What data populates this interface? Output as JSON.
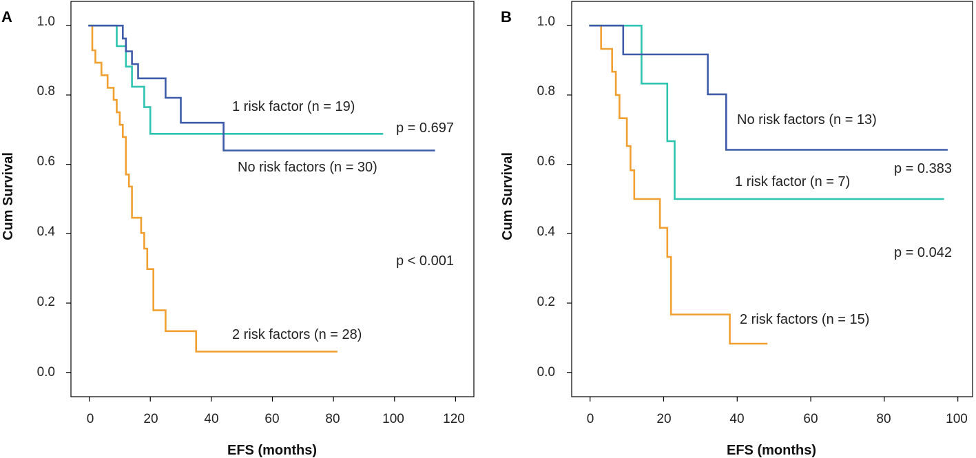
{
  "chart_data": [
    {
      "panel": "A",
      "type": "line",
      "title": "",
      "xlabel": "EFS (months)",
      "ylabel": "Cum Survival",
      "xlim": [
        -6,
        126
      ],
      "ylim": [
        -0.07,
        1.07
      ],
      "xticks": [
        0,
        20,
        40,
        60,
        80,
        100,
        120
      ],
      "yticks": [
        "0.0",
        "0.2",
        "0.4",
        "0.6",
        "0.8",
        "1.0"
      ],
      "series": [
        {
          "name": "2 risk factors (n = 28)",
          "color": "#F0A030",
          "step": true,
          "x": [
            0,
            1,
            2,
            4,
            6,
            8,
            9,
            10,
            11,
            12,
            13,
            14,
            16,
            17,
            18,
            19,
            21,
            25,
            35,
            81
          ],
          "y": [
            1.0,
            0.929,
            0.893,
            0.857,
            0.821,
            0.786,
            0.75,
            0.714,
            0.679,
            0.571,
            0.536,
            0.446,
            0.446,
            0.402,
            0.357,
            0.298,
            0.179,
            0.119,
            0.06,
            0.06
          ]
        },
        {
          "name": "1 risk factor (n = 19)",
          "color": "#2EC4B0",
          "step": true,
          "x": [
            0,
            9,
            12,
            14,
            16,
            18,
            20,
            96
          ],
          "y": [
            1.0,
            0.941,
            0.882,
            0.824,
            0.824,
            0.765,
            0.688,
            0.688
          ]
        },
        {
          "name": "No risk factors (n = 30)",
          "color": "#3D5BA9",
          "step": true,
          "x": [
            0,
            11,
            12,
            14,
            15,
            16,
            20,
            25,
            30,
            44,
            113
          ],
          "y": [
            1.0,
            0.963,
            0.926,
            0.889,
            0.889,
            0.848,
            0.848,
            0.792,
            0.72,
            0.64,
            0.64
          ]
        }
      ],
      "annotations": [
        {
          "text": "1 risk factor (n = 19)",
          "x": 47,
          "y": 0.755
        },
        {
          "text": "p = 0.697",
          "x": 101,
          "y": 0.695
        },
        {
          "text": "No risk factors (n = 30)",
          "x": 49,
          "y": 0.585
        },
        {
          "text": "p < 0.001",
          "x": 101,
          "y": 0.31
        },
        {
          "text": "2 risk factors (n = 28)",
          "x": 48,
          "y": 0.105
        }
      ]
    },
    {
      "panel": "B",
      "type": "line",
      "title": "",
      "xlabel": "EFS (months)",
      "ylabel": "Cum Survival",
      "xlim": [
        -5,
        104
      ],
      "ylim": [
        -0.07,
        1.07
      ],
      "xticks": [
        0,
        20,
        40,
        60,
        80,
        100
      ],
      "yticks": [
        "0.0",
        "0.2",
        "0.4",
        "0.6",
        "0.8",
        "1.0"
      ],
      "series": [
        {
          "name": "2 risk factors (n = 15)",
          "color": "#F0A030",
          "step": true,
          "x": [
            0,
            3,
            6,
            7,
            8,
            9,
            10,
            11,
            12,
            19,
            21,
            22,
            38,
            48
          ],
          "y": [
            1.0,
            0.933,
            0.867,
            0.8,
            0.733,
            0.733,
            0.653,
            0.583,
            0.5,
            0.417,
            0.333,
            0.167,
            0.083,
            0.083
          ]
        },
        {
          "name": "1 risk factor (n = 7)",
          "color": "#2EC4B0",
          "step": true,
          "x": [
            0,
            14,
            21,
            23,
            96
          ],
          "y": [
            1.0,
            0.833,
            0.667,
            0.5,
            0.5
          ]
        },
        {
          "name": "No risk factors (n = 13)",
          "color": "#3D5BA9",
          "step": true,
          "x": [
            0,
            9,
            32,
            37,
            97
          ],
          "y": [
            1.0,
            0.917,
            0.802,
            0.642,
            0.642
          ]
        }
      ],
      "annotations": [
        {
          "text": "No risk factors (n = 13)",
          "x": 40,
          "y": 0.725
        },
        {
          "text": "p = 0.383",
          "x": 82,
          "y": 0.58
        },
        {
          "text": "1 risk factor (n = 7)",
          "x": 39,
          "y": 0.545
        },
        {
          "text": "p = 0.042",
          "x": 82,
          "y": 0.335
        },
        {
          "text": "2 risk factors (n = 15)",
          "x": 41,
          "y": 0.145
        }
      ]
    }
  ]
}
